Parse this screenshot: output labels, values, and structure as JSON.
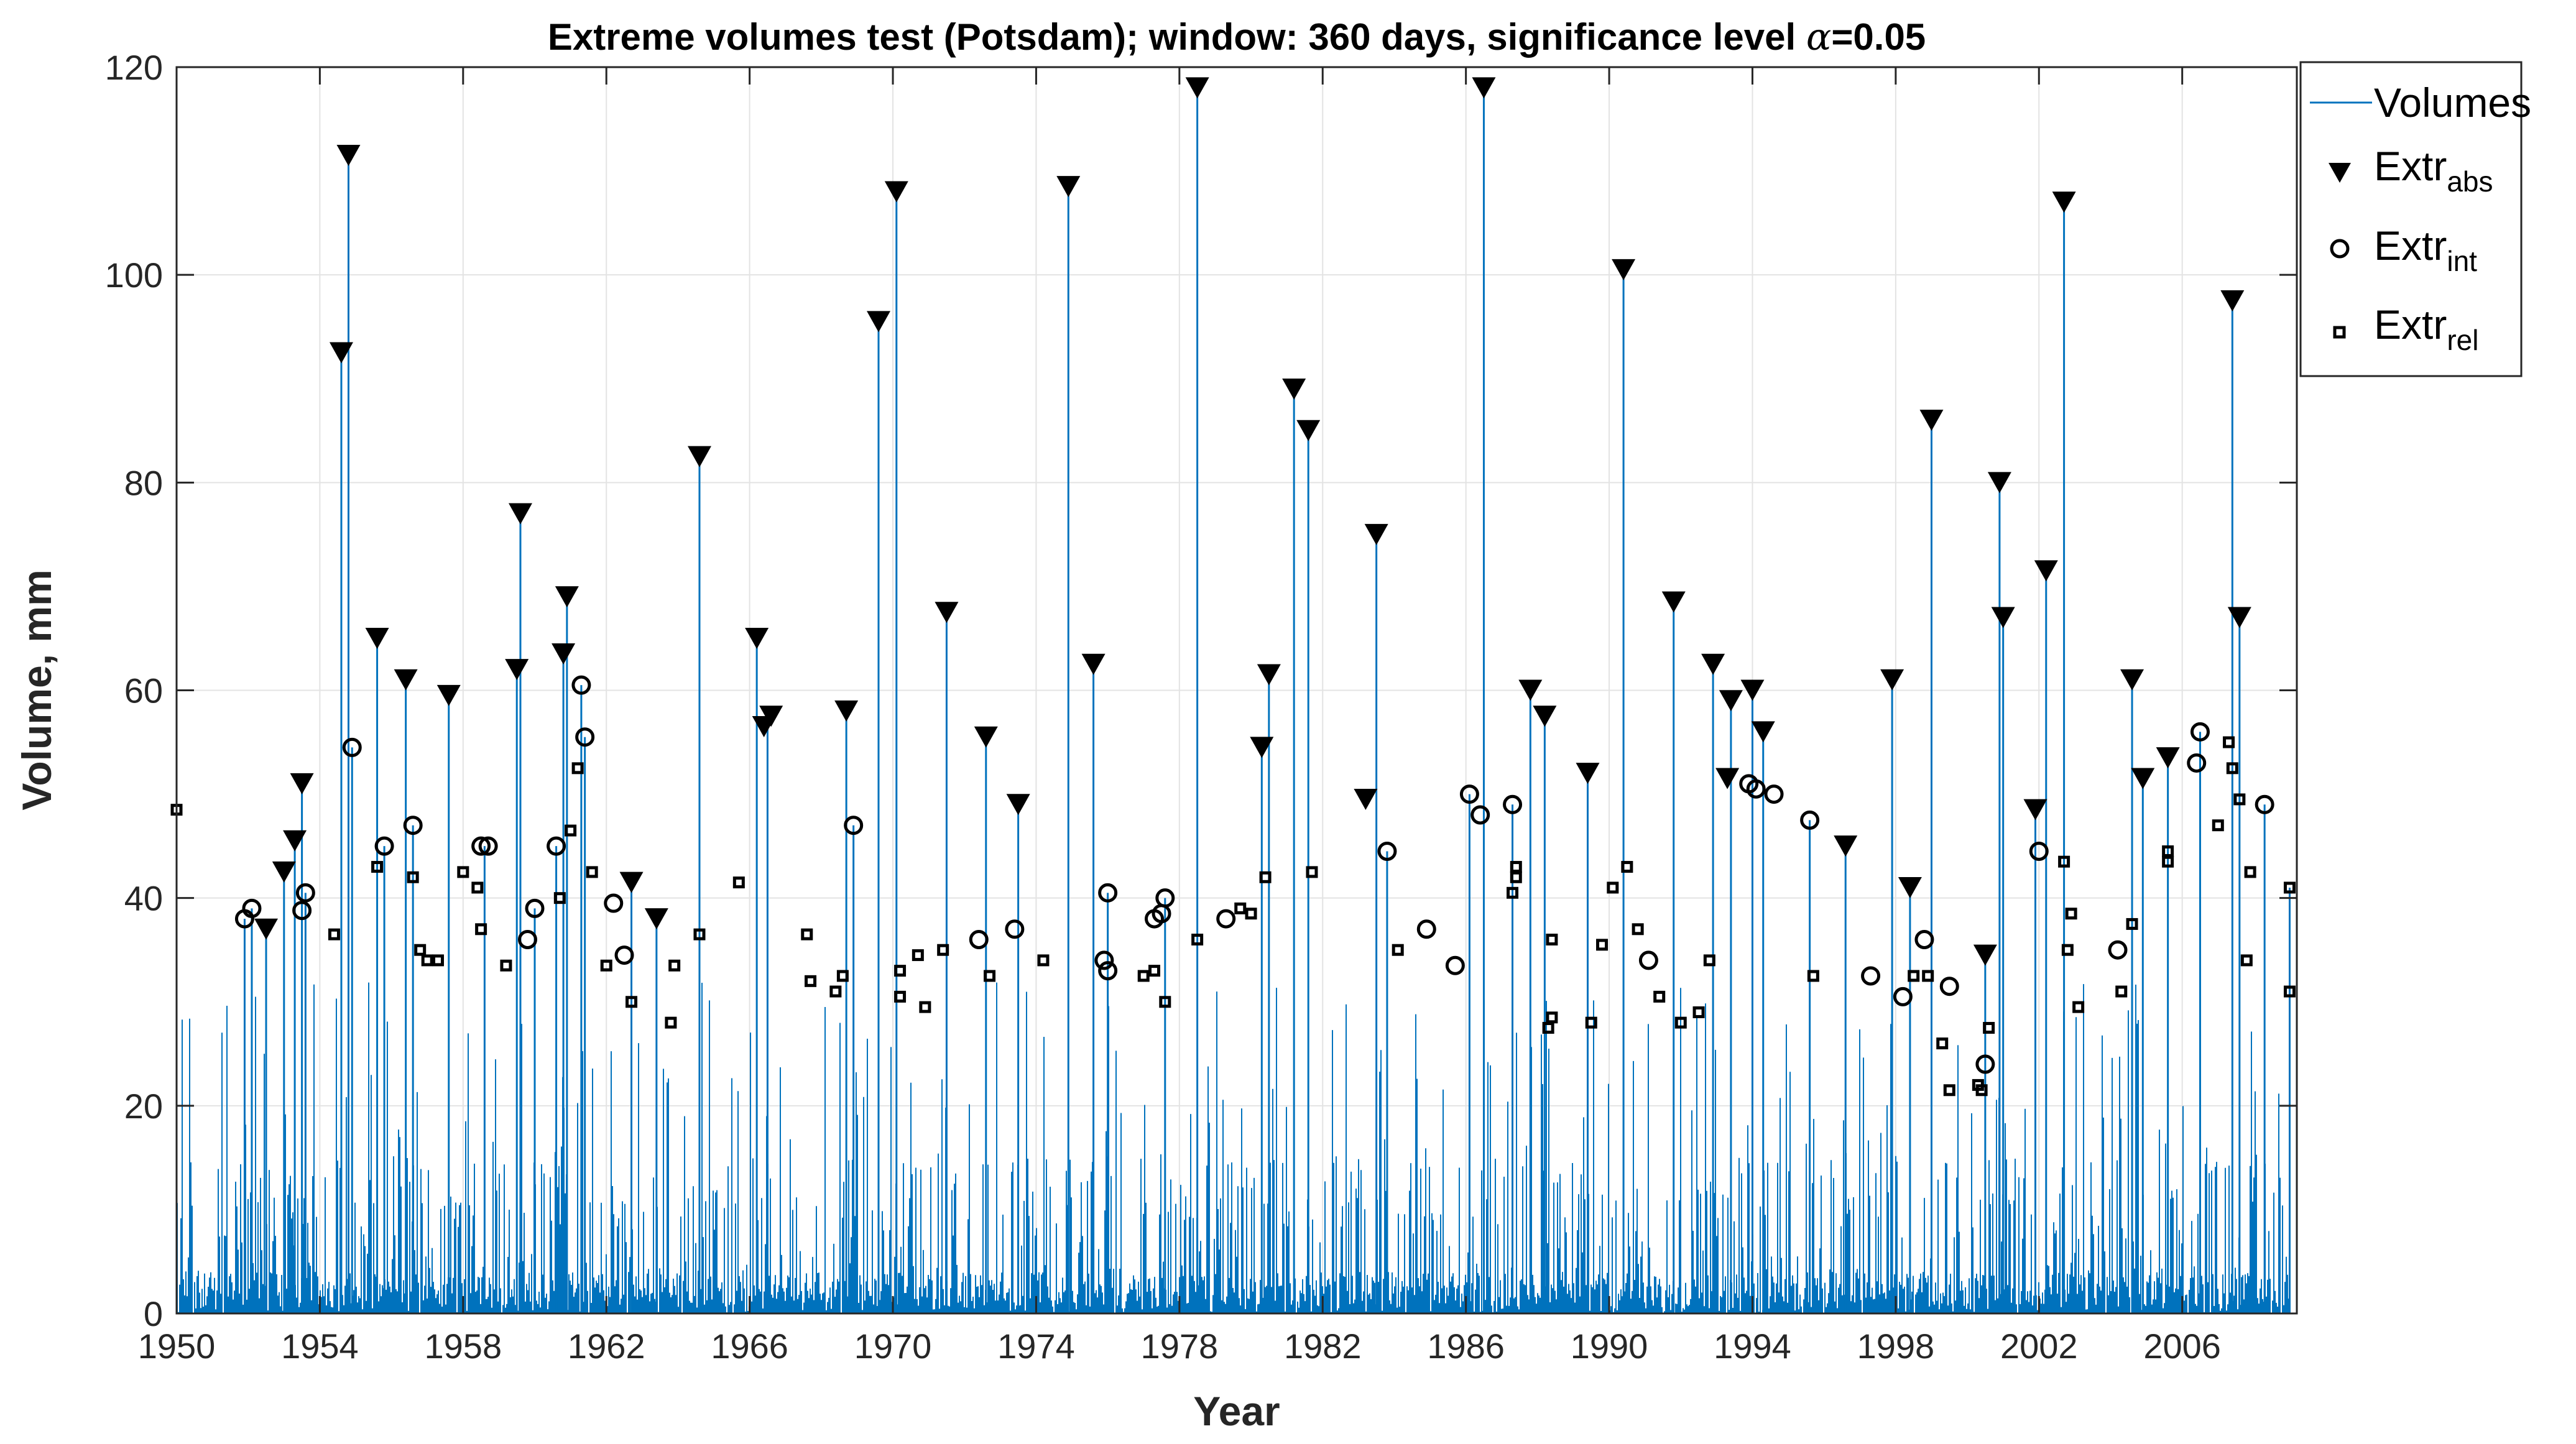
{
  "chart_data": {
    "type": "line",
    "title_parts": [
      "Extreme volumes test (Potsdam); window: 360 days, significance level ",
      "α",
      "=0.05"
    ],
    "xlabel": "Year",
    "ylabel": "Volume, mm",
    "xlim": [
      1950.0,
      2009.2
    ],
    "ylim": [
      0,
      120
    ],
    "xticks": [
      1950,
      1954,
      1958,
      1962,
      1966,
      1970,
      1974,
      1978,
      1982,
      1986,
      1990,
      1994,
      1998,
      2002,
      2006
    ],
    "yticks": [
      0,
      20,
      40,
      60,
      80,
      100,
      120
    ],
    "grid": true,
    "legend_position": "outside-top-right",
    "colors": {
      "volumes": "#0072BD",
      "markers": "#000000"
    },
    "series": [
      {
        "name": "Volumes",
        "style": "stem-line",
        "peaks": [
          [
            1950.0,
            48.5
          ],
          [
            1951.9,
            38.0
          ],
          [
            1952.1,
            39.0
          ],
          [
            1952.5,
            37.0
          ],
          [
            1953.0,
            42.5
          ],
          [
            1953.3,
            45.5
          ],
          [
            1953.5,
            51.0
          ],
          [
            1953.6,
            40.5
          ],
          [
            1954.6,
            92.5
          ],
          [
            1954.8,
            111.5
          ],
          [
            1954.9,
            54.5
          ],
          [
            1955.6,
            65.0
          ],
          [
            1955.8,
            45.0
          ],
          [
            1956.4,
            61.0
          ],
          [
            1956.6,
            47.0
          ],
          [
            1957.6,
            59.5
          ],
          [
            1958.6,
            45.0
          ],
          [
            1959.5,
            62.0
          ],
          [
            1959.6,
            77.0
          ],
          [
            1960.0,
            39.0
          ],
          [
            1960.6,
            45.0
          ],
          [
            1960.8,
            63.5
          ],
          [
            1960.9,
            69.0
          ],
          [
            1961.3,
            60.5
          ],
          [
            1961.4,
            55.5
          ],
          [
            1962.7,
            41.5
          ],
          [
            1963.4,
            38.0
          ],
          [
            1964.6,
            82.5
          ],
          [
            1966.2,
            65.0
          ],
          [
            1966.5,
            57.0
          ],
          [
            1968.7,
            58.0
          ],
          [
            1968.9,
            47.0
          ],
          [
            1969.6,
            95.5
          ],
          [
            1970.1,
            108.0
          ],
          [
            1971.5,
            67.5
          ],
          [
            1972.6,
            55.5
          ],
          [
            1973.5,
            49.0
          ],
          [
            1974.9,
            108.5
          ],
          [
            1975.6,
            62.5
          ],
          [
            1976.0,
            40.5
          ],
          [
            1977.6,
            40.0
          ],
          [
            1978.5,
            118.0
          ],
          [
            1980.3,
            54.5
          ],
          [
            1980.5,
            61.5
          ],
          [
            1981.2,
            89.0
          ],
          [
            1981.6,
            85.0
          ],
          [
            1983.5,
            75.0
          ],
          [
            1983.8,
            44.5
          ],
          [
            1986.1,
            50.0
          ],
          [
            1986.5,
            118.0
          ],
          [
            1987.3,
            49.0
          ],
          [
            1987.8,
            60.0
          ],
          [
            1988.2,
            57.5
          ],
          [
            1989.4,
            52.0
          ],
          [
            1990.4,
            100.5
          ],
          [
            1991.8,
            68.5
          ],
          [
            1992.9,
            62.5
          ],
          [
            1993.4,
            59.0
          ],
          [
            1994.0,
            60.0
          ],
          [
            1994.3,
            56.0
          ],
          [
            1995.6,
            47.5
          ],
          [
            1996.6,
            45.0
          ],
          [
            1997.9,
            61.0
          ],
          [
            1998.4,
            41.0
          ],
          [
            1999.0,
            86.0
          ],
          [
            2000.5,
            34.5
          ],
          [
            2000.9,
            80.0
          ],
          [
            2001.0,
            67.0
          ],
          [
            2001.9,
            48.5
          ],
          [
            2002.2,
            71.5
          ],
          [
            2002.7,
            107.0
          ],
          [
            2004.6,
            61.0
          ],
          [
            2004.9,
            51.5
          ],
          [
            2005.6,
            53.5
          ],
          [
            2006.5,
            56.0
          ],
          [
            2007.4,
            97.5
          ],
          [
            2007.6,
            67.0
          ],
          [
            2008.3,
            49.0
          ],
          [
            2009.0,
            41.0
          ]
        ]
      },
      {
        "name": "Extr_abs",
        "label_main": "Extr",
        "label_sub": "abs",
        "marker": "triangle-down",
        "points": [
          [
            1952.5,
            37.0
          ],
          [
            1953.0,
            42.5
          ],
          [
            1953.3,
            45.5
          ],
          [
            1953.5,
            51.0
          ],
          [
            1954.6,
            92.5
          ],
          [
            1954.8,
            111.5
          ],
          [
            1955.6,
            65.0
          ],
          [
            1956.4,
            61.0
          ],
          [
            1957.6,
            59.5
          ],
          [
            1959.5,
            62.0
          ],
          [
            1959.6,
            77.0
          ],
          [
            1960.8,
            63.5
          ],
          [
            1960.9,
            69.0
          ],
          [
            1962.7,
            41.5
          ],
          [
            1963.4,
            38.0
          ],
          [
            1964.6,
            82.5
          ],
          [
            1966.2,
            65.0
          ],
          [
            1966.4,
            56.5
          ],
          [
            1966.6,
            57.5
          ],
          [
            1968.7,
            58.0
          ],
          [
            1969.6,
            95.5
          ],
          [
            1970.1,
            108.0
          ],
          [
            1971.5,
            67.5
          ],
          [
            1972.6,
            55.5
          ],
          [
            1973.5,
            49.0
          ],
          [
            1974.9,
            108.5
          ],
          [
            1975.6,
            62.5
          ],
          [
            1978.5,
            118.0
          ],
          [
            1980.3,
            54.5
          ],
          [
            1980.5,
            61.5
          ],
          [
            1981.2,
            89.0
          ],
          [
            1981.6,
            85.0
          ],
          [
            1983.5,
            75.0
          ],
          [
            1983.2,
            49.5
          ],
          [
            1986.5,
            118.0
          ],
          [
            1987.8,
            60.0
          ],
          [
            1988.2,
            57.5
          ],
          [
            1989.4,
            52.0
          ],
          [
            1990.4,
            100.5
          ],
          [
            1991.8,
            68.5
          ],
          [
            1992.9,
            62.5
          ],
          [
            1993.3,
            51.5
          ],
          [
            1993.4,
            59.0
          ],
          [
            1994.0,
            60.0
          ],
          [
            1994.3,
            56.0
          ],
          [
            1996.6,
            45.0
          ],
          [
            1997.9,
            61.0
          ],
          [
            1998.4,
            41.0
          ],
          [
            1999.0,
            86.0
          ],
          [
            2000.5,
            34.5
          ],
          [
            2000.9,
            80.0
          ],
          [
            2001.0,
            67.0
          ],
          [
            2001.9,
            48.5
          ],
          [
            2002.2,
            71.5
          ],
          [
            2002.7,
            107.0
          ],
          [
            2004.6,
            61.0
          ],
          [
            2004.9,
            51.5
          ],
          [
            2005.6,
            53.5
          ],
          [
            2007.4,
            97.5
          ],
          [
            2007.6,
            67.0
          ]
        ]
      },
      {
        "name": "Extr_int",
        "label_main": "Extr",
        "label_sub": "int",
        "marker": "circle",
        "points": [
          [
            1951.9,
            38.0
          ],
          [
            1952.1,
            39.0
          ],
          [
            1953.5,
            38.8
          ],
          [
            1953.6,
            40.5
          ],
          [
            1954.9,
            54.5
          ],
          [
            1955.8,
            45.0
          ],
          [
            1956.6,
            47.0
          ],
          [
            1958.5,
            45.0
          ],
          [
            1958.7,
            45.0
          ],
          [
            1959.8,
            36.0
          ],
          [
            1960.0,
            39.0
          ],
          [
            1960.6,
            45.0
          ],
          [
            1961.3,
            60.5
          ],
          [
            1961.4,
            55.5
          ],
          [
            1962.2,
            39.5
          ],
          [
            1962.5,
            34.5
          ],
          [
            1968.9,
            47.0
          ],
          [
            1972.4,
            36.0
          ],
          [
            1973.4,
            37.0
          ],
          [
            1975.9,
            34.0
          ],
          [
            1976.0,
            40.5
          ],
          [
            1976.0,
            33.0
          ],
          [
            1977.3,
            38.0
          ],
          [
            1977.5,
            38.5
          ],
          [
            1977.6,
            40.0
          ],
          [
            1979.3,
            38.0
          ],
          [
            1983.8,
            44.5
          ],
          [
            1984.9,
            37.0
          ],
          [
            1985.7,
            33.5
          ],
          [
            1986.1,
            50.0
          ],
          [
            1986.4,
            48.0
          ],
          [
            1987.3,
            49.0
          ],
          [
            1991.1,
            34.0
          ],
          [
            1993.9,
            51.0
          ],
          [
            1994.1,
            50.5
          ],
          [
            1994.6,
            50.0
          ],
          [
            1995.6,
            47.5
          ],
          [
            1997.3,
            32.5
          ],
          [
            1998.2,
            30.5
          ],
          [
            1998.8,
            36.0
          ],
          [
            1999.5,
            31.5
          ],
          [
            2000.5,
            24.0
          ],
          [
            2002.0,
            44.5
          ],
          [
            2004.2,
            35.0
          ],
          [
            2006.4,
            53.0
          ],
          [
            2006.5,
            56.0
          ],
          [
            2008.3,
            49.0
          ]
        ]
      },
      {
        "name": "Extr_rel",
        "label_main": "Extr",
        "label_sub": "rel",
        "marker": "square",
        "points": [
          [
            1950.0,
            48.5
          ],
          [
            1954.4,
            36.5
          ],
          [
            1955.6,
            43.0
          ],
          [
            1956.6,
            42.0
          ],
          [
            1956.8,
            35.0
          ],
          [
            1957.0,
            34.0
          ],
          [
            1957.3,
            34.0
          ],
          [
            1958.0,
            42.5
          ],
          [
            1958.4,
            41.0
          ],
          [
            1958.5,
            37.0
          ],
          [
            1959.2,
            33.5
          ],
          [
            1960.7,
            40.0
          ],
          [
            1961.0,
            46.5
          ],
          [
            1961.2,
            52.5
          ],
          [
            1961.6,
            42.5
          ],
          [
            1962.0,
            33.5
          ],
          [
            1962.7,
            30.0
          ],
          [
            1963.8,
            28.0
          ],
          [
            1963.9,
            33.5
          ],
          [
            1964.6,
            36.5
          ],
          [
            1965.7,
            41.5
          ],
          [
            1967.6,
            36.5
          ],
          [
            1967.7,
            32.0
          ],
          [
            1968.4,
            31.0
          ],
          [
            1968.6,
            32.5
          ],
          [
            1970.2,
            33.0
          ],
          [
            1970.2,
            30.5
          ],
          [
            1970.7,
            34.5
          ],
          [
            1970.9,
            29.5
          ],
          [
            1971.4,
            35.0
          ],
          [
            1972.7,
            32.5
          ],
          [
            1974.2,
            34.0
          ],
          [
            1977.0,
            32.5
          ],
          [
            1977.3,
            33.0
          ],
          [
            1977.6,
            30.0
          ],
          [
            1978.5,
            36.0
          ],
          [
            1979.7,
            39.0
          ],
          [
            1980.0,
            38.5
          ],
          [
            1980.4,
            42.0
          ],
          [
            1981.7,
            42.5
          ],
          [
            1984.1,
            35.0
          ],
          [
            1987.3,
            40.5
          ],
          [
            1987.4,
            42.0
          ],
          [
            1987.4,
            43.0
          ],
          [
            1988.3,
            27.5
          ],
          [
            1988.4,
            28.5
          ],
          [
            1988.4,
            36.0
          ],
          [
            1989.5,
            28.0
          ],
          [
            1989.8,
            35.5
          ],
          [
            1990.1,
            41.0
          ],
          [
            1990.5,
            43.0
          ],
          [
            1990.8,
            37.0
          ],
          [
            1991.4,
            30.5
          ],
          [
            1992.0,
            28.0
          ],
          [
            1992.5,
            29.0
          ],
          [
            1992.8,
            34.0
          ],
          [
            1995.7,
            32.5
          ],
          [
            1998.5,
            32.5
          ],
          [
            1998.9,
            32.5
          ],
          [
            1999.3,
            26.0
          ],
          [
            1999.5,
            21.5
          ],
          [
            2000.3,
            22.0
          ],
          [
            2000.4,
            21.5
          ],
          [
            2000.6,
            27.5
          ],
          [
            2002.7,
            43.5
          ],
          [
            2002.8,
            35.0
          ],
          [
            2002.9,
            38.5
          ],
          [
            2003.1,
            29.5
          ],
          [
            2004.3,
            31.0
          ],
          [
            2004.6,
            37.5
          ],
          [
            2005.6,
            44.5
          ],
          [
            2005.6,
            43.5
          ],
          [
            2007.0,
            47.0
          ],
          [
            2007.3,
            55.0
          ],
          [
            2007.4,
            52.5
          ],
          [
            2007.6,
            49.5
          ],
          [
            2007.8,
            34.0
          ],
          [
            2007.9,
            42.5
          ],
          [
            2009.0,
            41.0
          ],
          [
            2009.0,
            31.0
          ]
        ]
      }
    ]
  }
}
